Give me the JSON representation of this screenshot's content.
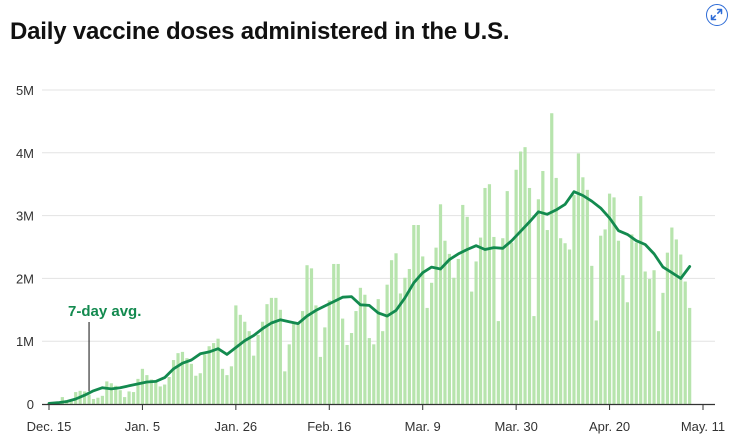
{
  "header": {
    "title": "Daily vaccine doses administered in the U.S.",
    "expand_icon": "expand-icon"
  },
  "chart_data": {
    "type": "bar",
    "title": "Daily vaccine doses administered in the U.S.",
    "xlabel": "",
    "ylabel": "",
    "ylim": [
      0,
      5000000
    ],
    "y_ticks": [
      {
        "value": 0,
        "label": "0"
      },
      {
        "value": 1000000,
        "label": "1M"
      },
      {
        "value": 2000000,
        "label": "2M"
      },
      {
        "value": 3000000,
        "label": "3M"
      },
      {
        "value": 4000000,
        "label": "4M"
      },
      {
        "value": 5000000,
        "label": "5M"
      }
    ],
    "x_ticks": [
      {
        "date": "2020-12-15",
        "label": "Dec. 15"
      },
      {
        "date": "2021-01-05",
        "label": "Jan. 5"
      },
      {
        "date": "2021-01-26",
        "label": "Jan. 26"
      },
      {
        "date": "2021-02-16",
        "label": "Feb. 16"
      },
      {
        "date": "2021-03-09",
        "label": "Mar. 9"
      },
      {
        "date": "2021-03-30",
        "label": "Mar. 30"
      },
      {
        "date": "2021-04-20",
        "label": "Apr. 20"
      },
      {
        "date": "2021-05-11",
        "label": "May. 11"
      }
    ],
    "grid": true,
    "bar_color": "#b7e4ad",
    "line_color": "#138a4f",
    "annotation": {
      "label": "7-day avg.",
      "date": "2020-12-24"
    },
    "series": [
      {
        "name": "Daily doses",
        "kind": "bar",
        "data": [
          [
            "2020-12-15",
            10000
          ],
          [
            "2020-12-16",
            20000
          ],
          [
            "2020-12-17",
            40000
          ],
          [
            "2020-12-18",
            110000
          ],
          [
            "2020-12-19",
            60000
          ],
          [
            "2020-12-20",
            50000
          ],
          [
            "2020-12-21",
            190000
          ],
          [
            "2020-12-22",
            210000
          ],
          [
            "2020-12-23",
            200000
          ],
          [
            "2020-12-24",
            150000
          ],
          [
            "2020-12-25",
            80000
          ],
          [
            "2020-12-26",
            100000
          ],
          [
            "2020-12-27",
            130000
          ],
          [
            "2020-12-28",
            360000
          ],
          [
            "2020-12-29",
            330000
          ],
          [
            "2020-12-30",
            290000
          ],
          [
            "2020-12-31",
            220000
          ],
          [
            "2021-01-01",
            110000
          ],
          [
            "2021-01-02",
            200000
          ],
          [
            "2021-01-03",
            190000
          ],
          [
            "2021-01-04",
            400000
          ],
          [
            "2021-01-05",
            560000
          ],
          [
            "2021-01-06",
            460000
          ],
          [
            "2021-01-07",
            390000
          ],
          [
            "2021-01-08",
            350000
          ],
          [
            "2021-01-09",
            280000
          ],
          [
            "2021-01-10",
            310000
          ],
          [
            "2021-01-11",
            430000
          ],
          [
            "2021-01-12",
            700000
          ],
          [
            "2021-01-13",
            810000
          ],
          [
            "2021-01-14",
            830000
          ],
          [
            "2021-01-15",
            730000
          ],
          [
            "2021-01-16",
            640000
          ],
          [
            "2021-01-17",
            450000
          ],
          [
            "2021-01-18",
            490000
          ],
          [
            "2021-01-19",
            790000
          ],
          [
            "2021-01-20",
            920000
          ],
          [
            "2021-01-21",
            970000
          ],
          [
            "2021-01-22",
            1040000
          ],
          [
            "2021-01-23",
            560000
          ],
          [
            "2021-01-24",
            460000
          ],
          [
            "2021-01-25",
            600000
          ],
          [
            "2021-01-26",
            1570000
          ],
          [
            "2021-01-27",
            1420000
          ],
          [
            "2021-01-28",
            1310000
          ],
          [
            "2021-01-29",
            1160000
          ],
          [
            "2021-01-30",
            770000
          ],
          [
            "2021-01-31",
            1100000
          ],
          [
            "2021-02-01",
            1310000
          ],
          [
            "2021-02-02",
            1590000
          ],
          [
            "2021-02-03",
            1690000
          ],
          [
            "2021-02-04",
            1690000
          ],
          [
            "2021-02-05",
            1500000
          ],
          [
            "2021-02-06",
            520000
          ],
          [
            "2021-02-07",
            950000
          ],
          [
            "2021-02-08",
            1310000
          ],
          [
            "2021-02-09",
            1300000
          ],
          [
            "2021-02-10",
            1480000
          ],
          [
            "2021-02-11",
            2210000
          ],
          [
            "2021-02-12",
            2160000
          ],
          [
            "2021-02-13",
            1570000
          ],
          [
            "2021-02-14",
            750000
          ],
          [
            "2021-02-15",
            1220000
          ],
          [
            "2021-02-16",
            1650000
          ],
          [
            "2021-02-17",
            2230000
          ],
          [
            "2021-02-18",
            2230000
          ],
          [
            "2021-02-19",
            1360000
          ],
          [
            "2021-02-20",
            940000
          ],
          [
            "2021-02-21",
            1130000
          ],
          [
            "2021-02-22",
            1480000
          ],
          [
            "2021-02-23",
            1850000
          ],
          [
            "2021-02-24",
            1740000
          ],
          [
            "2021-02-25",
            1050000
          ],
          [
            "2021-02-26",
            950000
          ],
          [
            "2021-02-27",
            1670000
          ],
          [
            "2021-02-28",
            1160000
          ],
          [
            "2021-03-01",
            1900000
          ],
          [
            "2021-03-02",
            2290000
          ],
          [
            "2021-03-03",
            2400000
          ],
          [
            "2021-03-04",
            1760000
          ],
          [
            "2021-03-05",
            2010000
          ],
          [
            "2021-03-06",
            2150000
          ],
          [
            "2021-03-07",
            2850000
          ],
          [
            "2021-03-08",
            2850000
          ],
          [
            "2021-03-09",
            2350000
          ],
          [
            "2021-03-10",
            1530000
          ],
          [
            "2021-03-11",
            1930000
          ],
          [
            "2021-03-12",
            2490000
          ],
          [
            "2021-03-13",
            3180000
          ],
          [
            "2021-03-14",
            2600000
          ],
          [
            "2021-03-15",
            2390000
          ],
          [
            "2021-03-16",
            2010000
          ],
          [
            "2021-03-17",
            2310000
          ],
          [
            "2021-03-18",
            3170000
          ],
          [
            "2021-03-19",
            2980000
          ],
          [
            "2021-03-20",
            1790000
          ],
          [
            "2021-03-21",
            2270000
          ],
          [
            "2021-03-22",
            2650000
          ],
          [
            "2021-03-23",
            3440000
          ],
          [
            "2021-03-24",
            3500000
          ],
          [
            "2021-03-25",
            2660000
          ],
          [
            "2021-03-26",
            1320000
          ],
          [
            "2021-03-27",
            2640000
          ],
          [
            "2021-03-28",
            3390000
          ],
          [
            "2021-03-29",
            2570000
          ],
          [
            "2021-03-30",
            3730000
          ],
          [
            "2021-03-31",
            4020000
          ],
          [
            "2021-04-01",
            4090000
          ],
          [
            "2021-04-02",
            3440000
          ],
          [
            "2021-04-03",
            1400000
          ],
          [
            "2021-04-04",
            3260000
          ],
          [
            "2021-04-05",
            3710000
          ],
          [
            "2021-04-06",
            2770000
          ],
          [
            "2021-04-07",
            4630000
          ],
          [
            "2021-04-08",
            3600000
          ],
          [
            "2021-04-09",
            2640000
          ],
          [
            "2021-04-10",
            2560000
          ],
          [
            "2021-04-11",
            2460000
          ],
          [
            "2021-04-12",
            3330000
          ],
          [
            "2021-04-13",
            3990000
          ],
          [
            "2021-04-14",
            3610000
          ],
          [
            "2021-04-15",
            3410000
          ],
          [
            "2021-04-16",
            2200000
          ],
          [
            "2021-04-17",
            1330000
          ],
          [
            "2021-04-18",
            2680000
          ],
          [
            "2021-04-19",
            2780000
          ],
          [
            "2021-04-20",
            3350000
          ],
          [
            "2021-04-21",
            3290000
          ],
          [
            "2021-04-22",
            2600000
          ],
          [
            "2021-04-23",
            2050000
          ],
          [
            "2021-04-24",
            1620000
          ],
          [
            "2021-04-25",
            2700000
          ],
          [
            "2021-04-26",
            2570000
          ],
          [
            "2021-04-27",
            3310000
          ],
          [
            "2021-04-28",
            2110000
          ],
          [
            "2021-04-29",
            1990000
          ],
          [
            "2021-04-30",
            2130000
          ],
          [
            "2021-05-01",
            1160000
          ],
          [
            "2021-05-02",
            1770000
          ],
          [
            "2021-05-03",
            2410000
          ],
          [
            "2021-05-04",
            2810000
          ],
          [
            "2021-05-05",
            2620000
          ],
          [
            "2021-05-06",
            2380000
          ],
          [
            "2021-05-07",
            1950000
          ],
          [
            "2021-05-08",
            1530000
          ]
        ]
      },
      {
        "name": "7-day avg.",
        "kind": "line",
        "data": [
          [
            "2020-12-15",
            10000
          ],
          [
            "2020-12-17",
            20000
          ],
          [
            "2020-12-19",
            40000
          ],
          [
            "2020-12-21",
            80000
          ],
          [
            "2020-12-23",
            140000
          ],
          [
            "2020-12-25",
            210000
          ],
          [
            "2020-12-27",
            260000
          ],
          [
            "2020-12-29",
            240000
          ],
          [
            "2020-12-31",
            260000
          ],
          [
            "2021-01-02",
            290000
          ],
          [
            "2021-01-04",
            320000
          ],
          [
            "2021-01-06",
            350000
          ],
          [
            "2021-01-08",
            360000
          ],
          [
            "2021-01-10",
            420000
          ],
          [
            "2021-01-12",
            560000
          ],
          [
            "2021-01-14",
            650000
          ],
          [
            "2021-01-16",
            700000
          ],
          [
            "2021-01-18",
            800000
          ],
          [
            "2021-01-20",
            830000
          ],
          [
            "2021-01-22",
            880000
          ],
          [
            "2021-01-24",
            790000
          ],
          [
            "2021-01-26",
            900000
          ],
          [
            "2021-01-28",
            1010000
          ],
          [
            "2021-01-30",
            1090000
          ],
          [
            "2021-02-01",
            1200000
          ],
          [
            "2021-02-03",
            1290000
          ],
          [
            "2021-02-05",
            1340000
          ],
          [
            "2021-02-07",
            1310000
          ],
          [
            "2021-02-09",
            1280000
          ],
          [
            "2021-02-11",
            1400000
          ],
          [
            "2021-02-13",
            1490000
          ],
          [
            "2021-02-15",
            1560000
          ],
          [
            "2021-02-17",
            1630000
          ],
          [
            "2021-02-19",
            1700000
          ],
          [
            "2021-02-21",
            1710000
          ],
          [
            "2021-02-23",
            1580000
          ],
          [
            "2021-02-25",
            1570000
          ],
          [
            "2021-02-27",
            1450000
          ],
          [
            "2021-03-01",
            1400000
          ],
          [
            "2021-03-03",
            1490000
          ],
          [
            "2021-03-05",
            1690000
          ],
          [
            "2021-03-07",
            1930000
          ],
          [
            "2021-03-09",
            2090000
          ],
          [
            "2021-03-11",
            2180000
          ],
          [
            "2021-03-13",
            2150000
          ],
          [
            "2021-03-15",
            2300000
          ],
          [
            "2021-03-17",
            2390000
          ],
          [
            "2021-03-19",
            2460000
          ],
          [
            "2021-03-21",
            2520000
          ],
          [
            "2021-03-23",
            2460000
          ],
          [
            "2021-03-25",
            2490000
          ],
          [
            "2021-03-27",
            2480000
          ],
          [
            "2021-03-29",
            2600000
          ],
          [
            "2021-03-31",
            2750000
          ],
          [
            "2021-04-02",
            2900000
          ],
          [
            "2021-04-04",
            3060000
          ],
          [
            "2021-04-06",
            3020000
          ],
          [
            "2021-04-08",
            3090000
          ],
          [
            "2021-04-10",
            3180000
          ],
          [
            "2021-04-12",
            3380000
          ],
          [
            "2021-04-14",
            3320000
          ],
          [
            "2021-04-16",
            3230000
          ],
          [
            "2021-04-18",
            3120000
          ],
          [
            "2021-04-20",
            2960000
          ],
          [
            "2021-04-22",
            2760000
          ],
          [
            "2021-04-24",
            2700000
          ],
          [
            "2021-04-26",
            2600000
          ],
          [
            "2021-04-28",
            2540000
          ],
          [
            "2021-04-30",
            2390000
          ],
          [
            "2021-05-02",
            2180000
          ],
          [
            "2021-05-04",
            2090000
          ],
          [
            "2021-05-06",
            2000000
          ],
          [
            "2021-05-08",
            2190000
          ]
        ]
      }
    ]
  }
}
